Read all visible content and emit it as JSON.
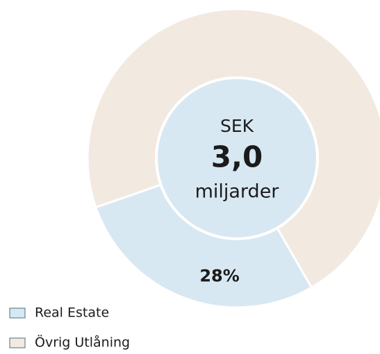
{
  "chart_data": {
    "type": "donut",
    "categories": [
      "Real Estate",
      "Övrig Utlåning"
    ],
    "values": [
      28,
      72
    ],
    "value_labels": [
      "28%",
      null
    ],
    "colors": [
      "#d8e8f2",
      "#f2e9e0"
    ],
    "center_text": [
      "SEK",
      "3,0",
      "miljarder"
    ],
    "legend": "bottom-left"
  }
}
